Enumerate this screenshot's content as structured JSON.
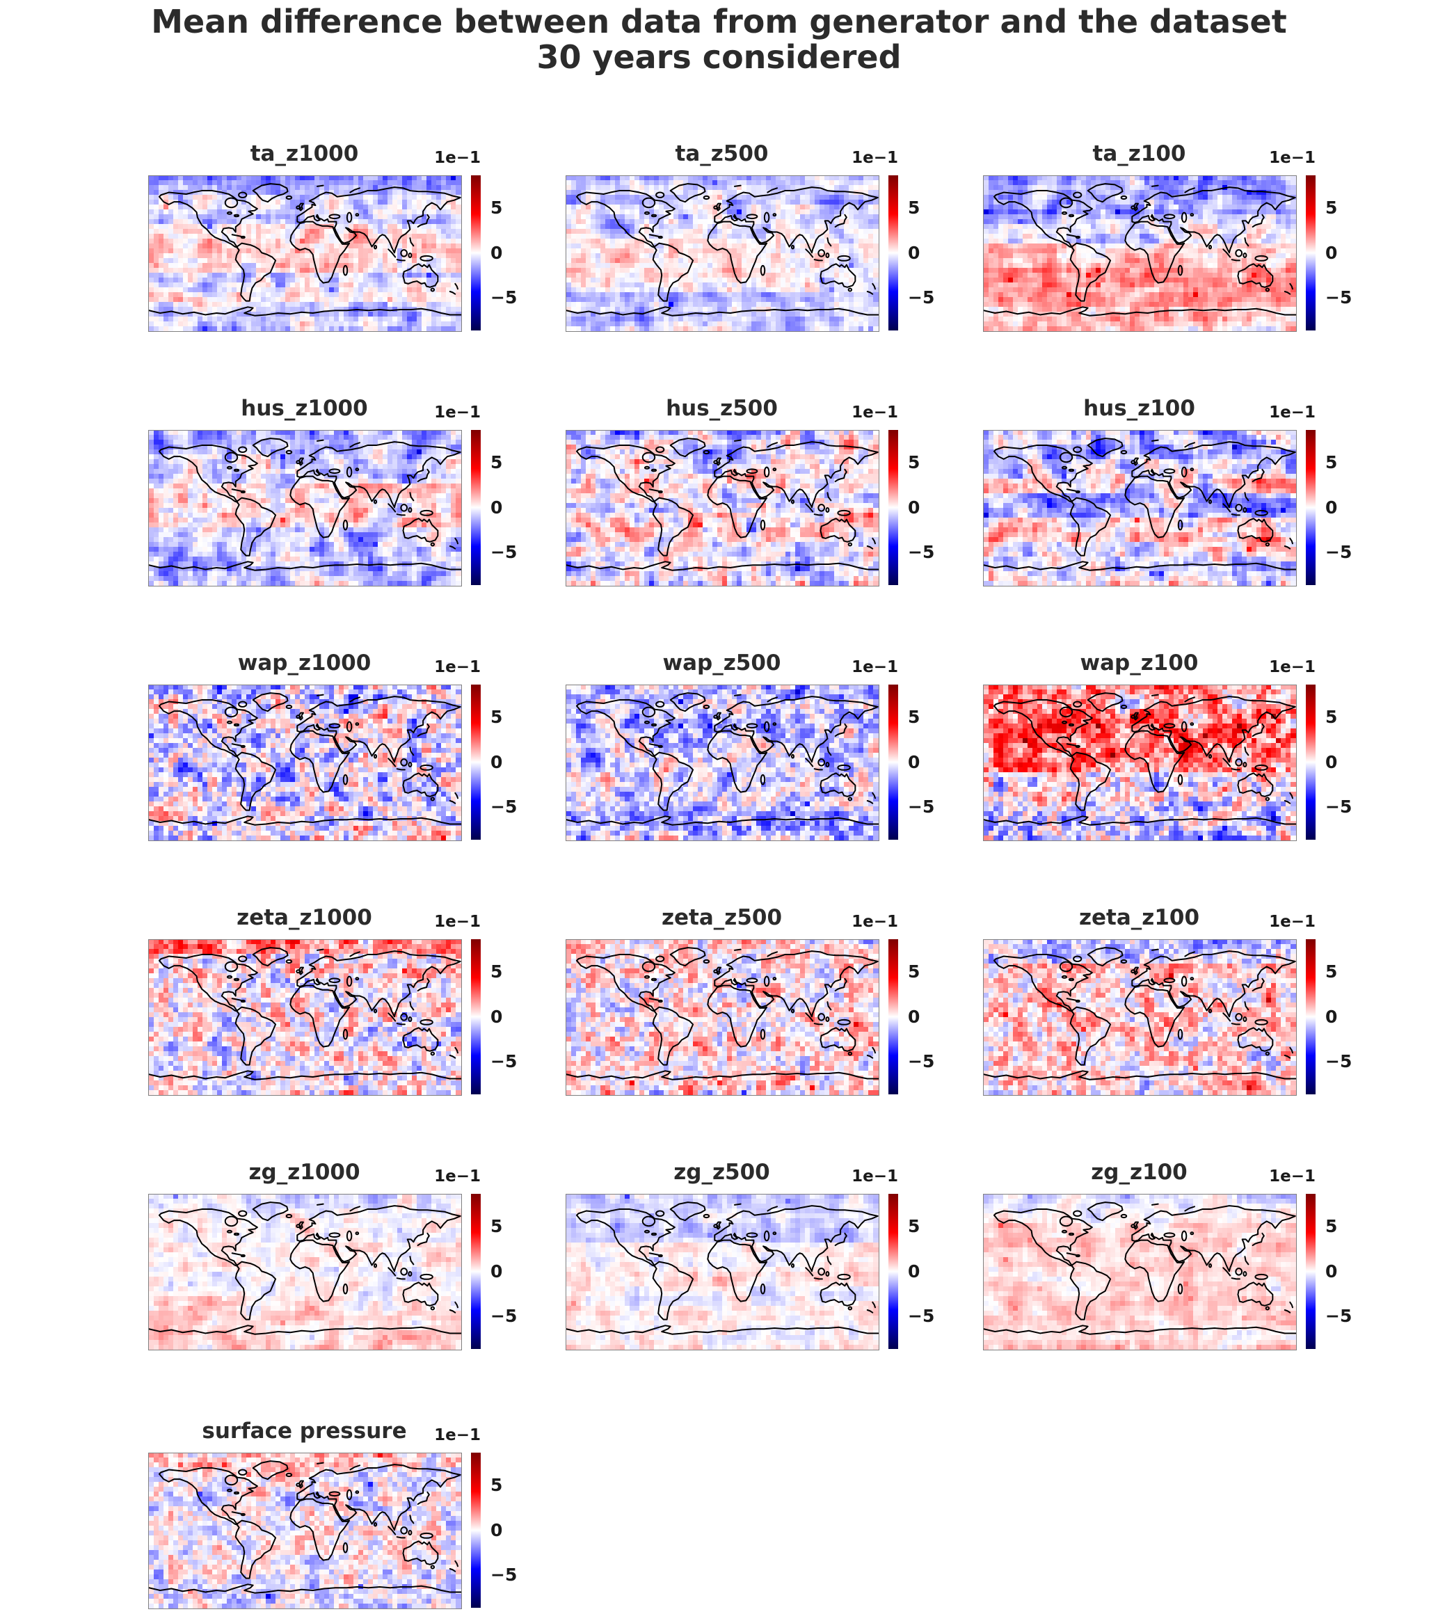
{
  "figure": {
    "title_line1": "Mean difference between data from generator and the dataset",
    "title_line2": "30 years considered"
  },
  "colors": {
    "background": "#ffffff",
    "title_text": "#2b2b2b",
    "coastline": "#000000",
    "map_border": "#808080"
  },
  "chart_data": {
    "type": "heatmap",
    "title": "Mean difference between data from generator and the dataset — 30 years considered",
    "layout": {
      "rows": 6,
      "cols": 3,
      "plots_in_last_row": 1,
      "projection": "equirectangular world map",
      "grid_cells": [
        64,
        32
      ]
    },
    "colormap": "seismic",
    "diverging_colors": {
      "max": "#7f0000",
      "high": "#ff0000",
      "mid": "#ffffff",
      "low": "#0000ff",
      "min": "#00004d"
    },
    "colorbar": {
      "scale_label": "1e−1",
      "ticks": [
        {
          "label": "5",
          "value": 5
        },
        {
          "label": "0",
          "value": 0
        },
        {
          "label": "−5",
          "value": -5
        }
      ],
      "vmin": -8.6,
      "vmax": 8.6,
      "units": "value × 1e−1"
    },
    "subplots": [
      {
        "title": "ta_z1000",
        "row": 0,
        "col": 0,
        "description": "light blue at high latitudes, faint pink tropical band",
        "noise_amp": 0.2,
        "row_amp": 0.1,
        "fine": false,
        "bias_bands": [
          [
            0,
            0.12,
            -0.16
          ],
          [
            0.12,
            0.32,
            -0.07
          ],
          [
            0.32,
            0.62,
            0.08
          ],
          [
            0.62,
            0.8,
            -0.06
          ],
          [
            0.8,
            1,
            -0.13
          ]
        ]
      },
      {
        "title": "ta_z500",
        "row": 0,
        "col": 1,
        "description": "mostly pale blue with faint pink patches",
        "noise_amp": 0.17,
        "row_amp": 0.08,
        "fine": false,
        "bias_bands": [
          [
            0,
            0.2,
            -0.12
          ],
          [
            0.2,
            0.5,
            -0.04
          ],
          [
            0.5,
            0.75,
            -0.02
          ],
          [
            0.75,
            1,
            -0.09
          ]
        ]
      },
      {
        "title": "ta_z100",
        "row": 0,
        "col": 2,
        "description": "blue northern hemisphere, red southern hemisphere",
        "noise_amp": 0.2,
        "row_amp": 0.08,
        "fine": false,
        "bias_bands": [
          [
            0,
            0.25,
            -0.17
          ],
          [
            0.25,
            0.45,
            -0.04
          ],
          [
            0.45,
            0.6,
            0.1
          ],
          [
            0.6,
            0.85,
            0.22
          ],
          [
            0.85,
            1,
            0.1
          ]
        ]
      },
      {
        "title": "hus_z1000",
        "row": 1,
        "col": 0,
        "description": "pale blue overall with red patches in the tropics",
        "noise_amp": 0.24,
        "row_amp": 0.06,
        "fine": false,
        "bias_bands": [
          [
            0,
            0.15,
            -0.14
          ],
          [
            0.15,
            0.35,
            -0.09
          ],
          [
            0.35,
            0.62,
            0.03
          ],
          [
            0.62,
            0.85,
            -0.08
          ],
          [
            0.85,
            1,
            -0.11
          ]
        ]
      },
      {
        "title": "hus_z500",
        "row": 1,
        "col": 1,
        "description": "mixed red/blue speckle, near neutral",
        "noise_amp": 0.3,
        "row_amp": 0.05,
        "fine": false,
        "bias_bands": [
          [
            0,
            0.18,
            -0.06
          ],
          [
            0.18,
            0.42,
            0.03
          ],
          [
            0.42,
            0.52,
            -0.06
          ],
          [
            0.52,
            0.7,
            0.05
          ],
          [
            0.7,
            1,
            -0.03
          ]
        ]
      },
      {
        "title": "hus_z100",
        "row": 1,
        "col": 2,
        "description": "blue north, blue equatorial band, reddish subtropics",
        "noise_amp": 0.3,
        "row_amp": 0.05,
        "fine": false,
        "bias_bands": [
          [
            0,
            0.18,
            -0.14
          ],
          [
            0.18,
            0.3,
            -0.06
          ],
          [
            0.3,
            0.42,
            0.06
          ],
          [
            0.42,
            0.55,
            -0.16
          ],
          [
            0.55,
            0.72,
            0.09
          ],
          [
            0.72,
            1,
            -0.04
          ]
        ]
      },
      {
        "title": "wap_z1000",
        "row": 2,
        "col": 0,
        "description": "fine-grained mixed noise, slightly blue",
        "noise_amp": 0.34,
        "row_amp": 0.05,
        "fine": true,
        "bias_bands": [
          [
            0,
            0.1,
            -0.12
          ],
          [
            0.1,
            1,
            -0.05
          ]
        ]
      },
      {
        "title": "wap_z500",
        "row": 2,
        "col": 1,
        "description": "blue dominant speckle, darker band to the south",
        "noise_amp": 0.28,
        "row_amp": 0.07,
        "fine": true,
        "bias_bands": [
          [
            0,
            0.55,
            -0.1
          ],
          [
            0.55,
            0.8,
            -0.08
          ],
          [
            0.8,
            1,
            -0.16
          ]
        ]
      },
      {
        "title": "wap_z100",
        "row": 2,
        "col": 2,
        "description": "strong red over most of globe, lighter southern ocean",
        "noise_amp": 0.36,
        "row_amp": 0.05,
        "fine": true,
        "bias_bands": [
          [
            0,
            0.15,
            0.2
          ],
          [
            0.15,
            0.55,
            0.27
          ],
          [
            0.55,
            0.75,
            0.02
          ],
          [
            0.75,
            1,
            -0.05
          ]
        ]
      },
      {
        "title": "zeta_z1000",
        "row": 3,
        "col": 0,
        "description": "salt-and-pepper noise, red band at arctic top",
        "noise_amp": 0.3,
        "row_amp": 0.05,
        "fine": true,
        "bias_bands": [
          [
            0,
            0.08,
            0.22
          ],
          [
            0.08,
            1,
            0.04
          ]
        ]
      },
      {
        "title": "zeta_z500",
        "row": 3,
        "col": 1,
        "description": "mixed speckle slightly red",
        "noise_amp": 0.28,
        "row_amp": 0.04,
        "fine": true,
        "bias_bands": [
          [
            0,
            0.1,
            0.03
          ],
          [
            0.1,
            1,
            0.05
          ]
        ]
      },
      {
        "title": "zeta_z100",
        "row": 3,
        "col": 2,
        "description": "blue band at top, pinkish elsewhere",
        "noise_amp": 0.28,
        "row_amp": 0.05,
        "fine": true,
        "bias_bands": [
          [
            0,
            0.15,
            -0.1
          ],
          [
            0.15,
            0.6,
            0.08
          ],
          [
            0.6,
            1,
            0.05
          ]
        ]
      },
      {
        "title": "zg_z1000",
        "row": 4,
        "col": 0,
        "description": "very light, faint pink toward southern ocean",
        "noise_amp": 0.13,
        "row_amp": 0.06,
        "fine": false,
        "bias_bands": [
          [
            0,
            0.3,
            -0.02
          ],
          [
            0.3,
            0.75,
            0.03
          ],
          [
            0.75,
            1,
            0.09
          ]
        ]
      },
      {
        "title": "zg_z500",
        "row": 4,
        "col": 1,
        "description": "faint blue northern half, very light south",
        "noise_amp": 0.12,
        "row_amp": 0.05,
        "fine": false,
        "bias_bands": [
          [
            0,
            0.3,
            -0.1
          ],
          [
            0.3,
            0.55,
            0.01
          ],
          [
            0.55,
            1,
            0.02
          ]
        ]
      },
      {
        "title": "zg_z100",
        "row": 4,
        "col": 2,
        "description": "faint pink overall",
        "noise_amp": 0.12,
        "row_amp": 0.06,
        "fine": false,
        "bias_bands": [
          [
            0,
            0.2,
            -0.02
          ],
          [
            0.2,
            1,
            0.08
          ]
        ]
      },
      {
        "title": "surface pressure",
        "row": 5,
        "col": 0,
        "description": "light mixed speckle, reddish arctic band",
        "noise_amp": 0.24,
        "row_amp": 0.05,
        "fine": true,
        "bias_bands": [
          [
            0,
            0.1,
            0.13
          ],
          [
            0.1,
            0.75,
            0.01
          ],
          [
            0.75,
            1,
            -0.04
          ]
        ]
      }
    ]
  }
}
